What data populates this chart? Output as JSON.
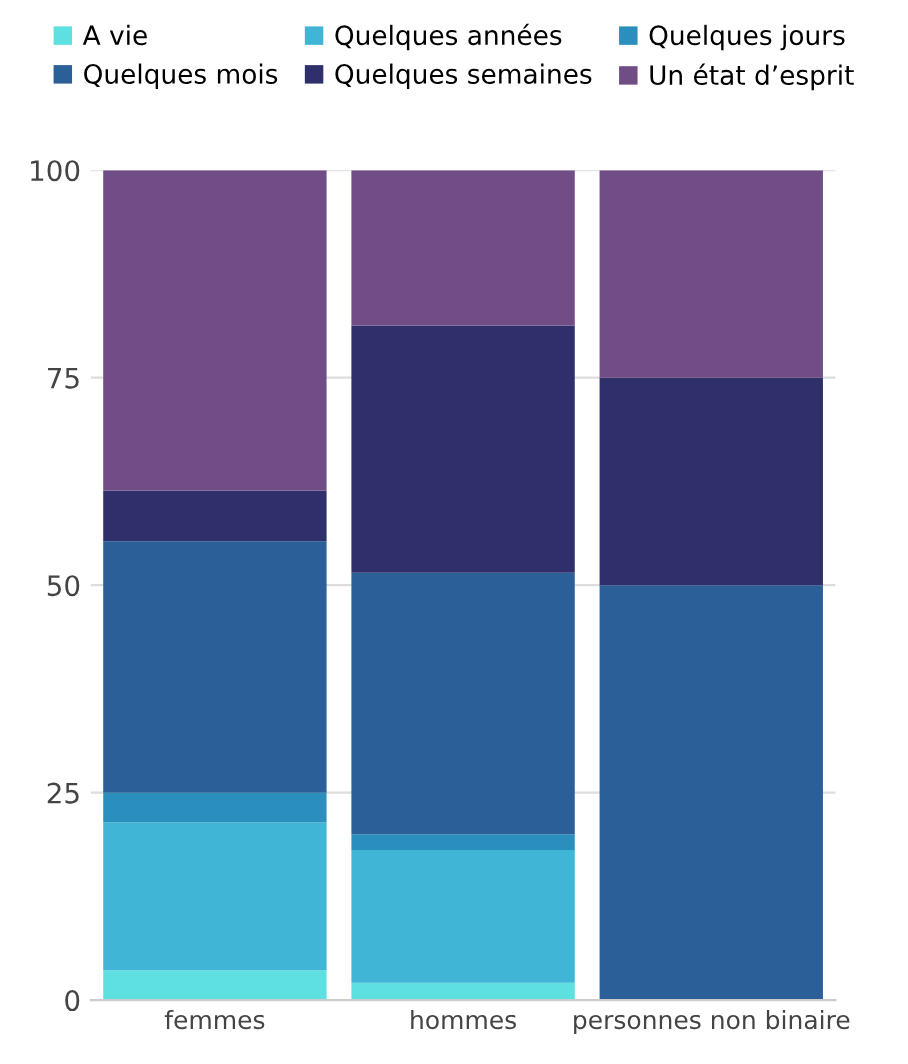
{
  "chart_data": {
    "type": "bar",
    "stacked": true,
    "categories": [
      "femmes",
      "hommes",
      "personnes non binaire"
    ],
    "series": [
      {
        "name": "A vie",
        "color": "#5ee0e0",
        "values": [
          3.6,
          2.1,
          0
        ]
      },
      {
        "name": "Quelques années",
        "color": "#40b5d5",
        "values": [
          17.8,
          16.0,
          0
        ]
      },
      {
        "name": "Quelques jours",
        "color": "#2a8fbd",
        "values": [
          3.6,
          1.9,
          0
        ]
      },
      {
        "name": "Quelques mois",
        "color": "#2b5f98",
        "values": [
          30.3,
          31.5,
          50
        ]
      },
      {
        "name": "Quelques semaines",
        "color": "#2e2f6b",
        "values": [
          6.1,
          29.8,
          25
        ]
      },
      {
        "name": "Un état d’esprit",
        "color": "#714d85",
        "values": [
          38.6,
          18.7,
          25
        ]
      }
    ],
    "ylim": [
      0,
      100
    ],
    "yticks": [
      0,
      25,
      50,
      75,
      100
    ],
    "grid": "y",
    "legend": "top"
  }
}
